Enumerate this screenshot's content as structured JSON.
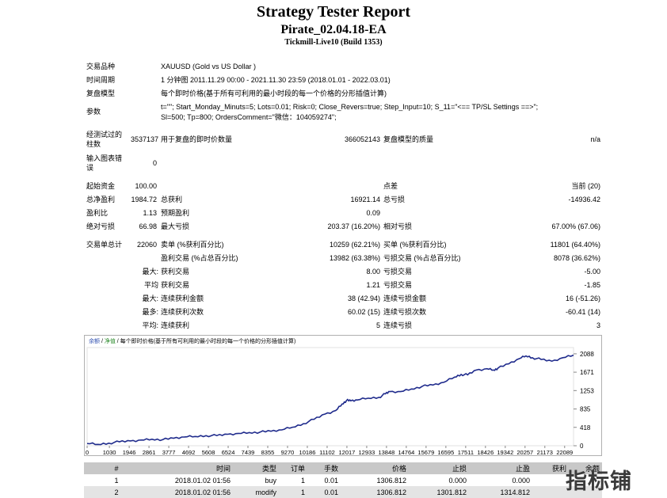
{
  "report": {
    "title": "Strategy Tester Report",
    "ea_name": "Pirate_02.04.18-EA",
    "server_build": "Tickmill-Live10 (Build 1353)"
  },
  "info": {
    "symbol_label": "交易品种",
    "symbol_value": "XAUUSD (Gold vs US Dollar )",
    "period_label": "时间周期",
    "period_value": "1 分钟图 2011.11.29 00:00 - 2021.11.30 23:59 (2018.01.01 - 2022.03.01)",
    "model_label": "复盘模型",
    "model_value": "每个即时价格(基于所有可利用的最小时段的每一个价格的分形插值计算)",
    "params_label": "参数",
    "params_line1": "t=\"\"; Start_Monday_Minuts=5; Lots=0.01; Risk=0; Close_Revers=true; Step_Input=10; S_11=\"<== TP/SL Settings ==>\";",
    "params_line2": "Sl=500; Tp=800; OrdersComment=\"微信：104059274\";",
    "bars_label_1": "经测试过的",
    "bars_label_2": "柱数",
    "bars_value": "3537137",
    "ticks_label": "用于复盘的即时价数量",
    "ticks_value": "366052143",
    "quality_label": "复盘模型的质量",
    "quality_value": "n/a",
    "errors_label_1": "输入图表错",
    "errors_label_2": "误",
    "errors_value": "0"
  },
  "stats": {
    "initial_deposit_label": "起始资金",
    "initial_deposit": "100.00",
    "spread_label": "点差",
    "spread_value": "当前 (20)",
    "net_profit_label": "总净盈利",
    "net_profit": "1984.72",
    "gross_profit_label": "总获利",
    "gross_profit": "16921.14",
    "gross_loss_label": "总亏损",
    "gross_loss": "-14936.42",
    "profit_factor_label": "盈利比",
    "profit_factor": "1.13",
    "expected_payoff_label": "预期盈利",
    "expected_payoff": "0.09",
    "abs_drawdown_label": "绝对亏损",
    "abs_drawdown": "66.98",
    "max_drawdown_label": "最大亏损",
    "max_drawdown": "203.37 (16.20%)",
    "rel_drawdown_label": "相对亏损",
    "rel_drawdown": "67.00% (67.06)",
    "total_trades_label": "交易单总计",
    "total_trades": "22060",
    "short_label": "卖单 (%获利百分比)",
    "short_value": "10259 (62.21%)",
    "long_label": "买单 (%获利百分比)",
    "long_value": "11801 (64.40%)",
    "profit_trades_label": "盈利交易 (%占总百分比)",
    "profit_trades": "13982 (63.38%)",
    "loss_trades_label": "亏损交易 (%占总百分比)",
    "loss_trades": "8078 (36.62%)",
    "largest_prefix": "最大:",
    "largest_profit_label": "获利交易",
    "largest_profit": "8.00",
    "largest_loss_label": "亏损交易",
    "largest_loss": "-5.00",
    "average_prefix": "平均",
    "avg_profit_label": "获利交易",
    "avg_profit": "1.21",
    "avg_loss_label": "亏损交易",
    "avg_loss": "-1.85",
    "max_prefix": "最大:",
    "max_cons_wins_label": "连续获利金额",
    "max_cons_wins": "38 (42.94)",
    "max_cons_losses_label": "连续亏损金额",
    "max_cons_losses": "16 (-51.26)",
    "maximal_prefix": "最多:",
    "maximal_cons_profit_label": "连续获利次数",
    "maximal_cons_profit": "60.02 (15)",
    "maximal_cons_loss_label": "连续亏损次数",
    "maximal_cons_loss": "-60.41 (14)",
    "avg_cons_prefix": "平均:",
    "avg_cons_wins_label": "连续获利",
    "avg_cons_wins": "5",
    "avg_cons_losses_label": "连续亏损",
    "avg_cons_losses": "3"
  },
  "chart_title": {
    "part1": "余额",
    "sep": " / ",
    "part2": "净值",
    "part3": " / 每个即时价格(基于所有可利用的最小时段的每一个价格的分形插值计算)"
  },
  "chart_data": {
    "type": "line",
    "series": [],
    "line_color": "#1f2b8c",
    "x_ticks": [
      "0",
      "1030",
      "1946",
      "2861",
      "3777",
      "4692",
      "5608",
      "6524",
      "7439",
      "8355",
      "9270",
      "10186",
      "11102",
      "12017",
      "12933",
      "13848",
      "14764",
      "15679",
      "16595",
      "17511",
      "18426",
      "19342",
      "20257",
      "21173",
      "22089"
    ],
    "y_ticks": [
      "2088",
      "1671",
      "1253",
      "835",
      "418",
      "0"
    ],
    "xlim": [
      0,
      22500
    ],
    "ylim": [
      0,
      2230
    ],
    "points": [
      [
        0,
        50
      ],
      [
        500,
        30
      ],
      [
        1000,
        60
      ],
      [
        1500,
        90
      ],
      [
        2000,
        110
      ],
      [
        2500,
        130
      ],
      [
        3000,
        150
      ],
      [
        3500,
        140
      ],
      [
        4000,
        170
      ],
      [
        4500,
        200
      ],
      [
        5000,
        210
      ],
      [
        5500,
        230
      ],
      [
        6000,
        230
      ],
      [
        6500,
        260
      ],
      [
        7000,
        280
      ],
      [
        7500,
        300
      ],
      [
        8000,
        310
      ],
      [
        8500,
        330
      ],
      [
        9000,
        360
      ],
      [
        9500,
        420
      ],
      [
        10000,
        500
      ],
      [
        10500,
        600
      ],
      [
        11000,
        720
      ],
      [
        11500,
        800
      ],
      [
        11800,
        950
      ],
      [
        12000,
        1030
      ],
      [
        12200,
        1020
      ],
      [
        12500,
        1040
      ],
      [
        13000,
        1080
      ],
      [
        13500,
        1100
      ],
      [
        13800,
        1180
      ],
      [
        14000,
        1230
      ],
      [
        14500,
        1230
      ],
      [
        15000,
        1290
      ],
      [
        15500,
        1350
      ],
      [
        16000,
        1380
      ],
      [
        16500,
        1440
      ],
      [
        17000,
        1560
      ],
      [
        17300,
        1620
      ],
      [
        17600,
        1610
      ],
      [
        18000,
        1720
      ],
      [
        18500,
        1750
      ],
      [
        18800,
        1720
      ],
      [
        19000,
        1760
      ],
      [
        19500,
        1860
      ],
      [
        20000,
        1980
      ],
      [
        20300,
        2040
      ],
      [
        20600,
        2000
      ],
      [
        21000,
        1960
      ],
      [
        21500,
        1920
      ],
      [
        22000,
        2000
      ],
      [
        22500,
        2060
      ]
    ]
  },
  "trades": {
    "headers": [
      "#",
      "时间",
      "类型",
      "订单",
      "手数",
      "价格",
      "止损",
      "止盈",
      "获利",
      "余额"
    ],
    "rows": [
      [
        "1",
        "2018.01.02 01:56",
        "buy",
        "1",
        "0.01",
        "1306.812",
        "0.000",
        "0.000",
        "",
        ""
      ],
      [
        "2",
        "2018.01.02 01:56",
        "modify",
        "1",
        "0.01",
        "1306.812",
        "1301.812",
        "1314.812",
        "",
        ""
      ]
    ]
  },
  "watermark": "指标铺"
}
